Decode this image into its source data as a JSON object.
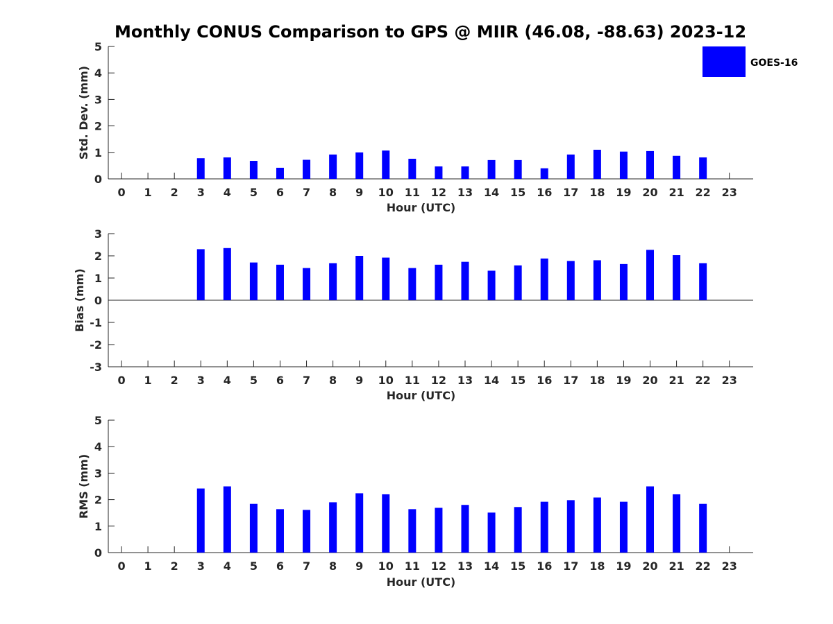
{
  "title": "Monthly CONUS Comparison to GPS @ MIIR (46.08, -88.63) 2023-12",
  "legend": {
    "label": "GOES-16",
    "color": "#0000ff",
    "placement": "top-right"
  },
  "chart_data": [
    {
      "type": "bar",
      "xlabel": "Hour (UTC)",
      "ylabel": "Std. Dev. (mm)",
      "ylim": [
        0,
        5
      ],
      "yticks": [
        0,
        1,
        2,
        3,
        4,
        5
      ],
      "xlim": [
        -0.5,
        23.9
      ],
      "categories": [
        0,
        1,
        2,
        3,
        4,
        5,
        6,
        7,
        8,
        9,
        10,
        11,
        12,
        13,
        14,
        15,
        16,
        17,
        18,
        19,
        20,
        21,
        22,
        23
      ],
      "series": [
        {
          "name": "GOES-16",
          "values": [
            null,
            null,
            null,
            0.78,
            0.81,
            0.68,
            0.42,
            0.72,
            0.92,
            1.0,
            1.07,
            0.76,
            0.47,
            0.47,
            0.71,
            0.71,
            0.4,
            0.92,
            1.1,
            1.03,
            1.05,
            0.87,
            0.81,
            null
          ]
        }
      ]
    },
    {
      "type": "bar",
      "xlabel": "Hour (UTC)",
      "ylabel": "Bias (mm)",
      "ylim": [
        -3,
        3
      ],
      "yticks": [
        -3,
        -2,
        -1,
        0,
        1,
        2,
        3
      ],
      "xlim": [
        -0.5,
        23.9
      ],
      "categories": [
        0,
        1,
        2,
        3,
        4,
        5,
        6,
        7,
        8,
        9,
        10,
        11,
        12,
        13,
        14,
        15,
        16,
        17,
        18,
        19,
        20,
        21,
        22,
        23
      ],
      "series": [
        {
          "name": "GOES-16",
          "values": [
            null,
            null,
            null,
            2.3,
            2.35,
            1.7,
            1.6,
            1.45,
            1.67,
            2.0,
            1.92,
            1.45,
            1.6,
            1.73,
            1.33,
            1.57,
            1.88,
            1.77,
            1.8,
            1.63,
            2.27,
            2.03,
            1.67,
            null
          ]
        }
      ]
    },
    {
      "type": "bar",
      "xlabel": "Hour (UTC)",
      "ylabel": "RMS (mm)",
      "ylim": [
        0,
        5
      ],
      "yticks": [
        0,
        1,
        2,
        3,
        4,
        5
      ],
      "xlim": [
        -0.5,
        23.9
      ],
      "categories": [
        0,
        1,
        2,
        3,
        4,
        5,
        6,
        7,
        8,
        9,
        10,
        11,
        12,
        13,
        14,
        15,
        16,
        17,
        18,
        19,
        20,
        21,
        22,
        23
      ],
      "series": [
        {
          "name": "GOES-16",
          "values": [
            null,
            null,
            null,
            2.42,
            2.5,
            1.84,
            1.64,
            1.61,
            1.9,
            2.24,
            2.2,
            1.64,
            1.69,
            1.8,
            1.51,
            1.72,
            1.92,
            1.98,
            2.08,
            1.92,
            2.5,
            2.2,
            1.84,
            null
          ]
        }
      ]
    }
  ]
}
